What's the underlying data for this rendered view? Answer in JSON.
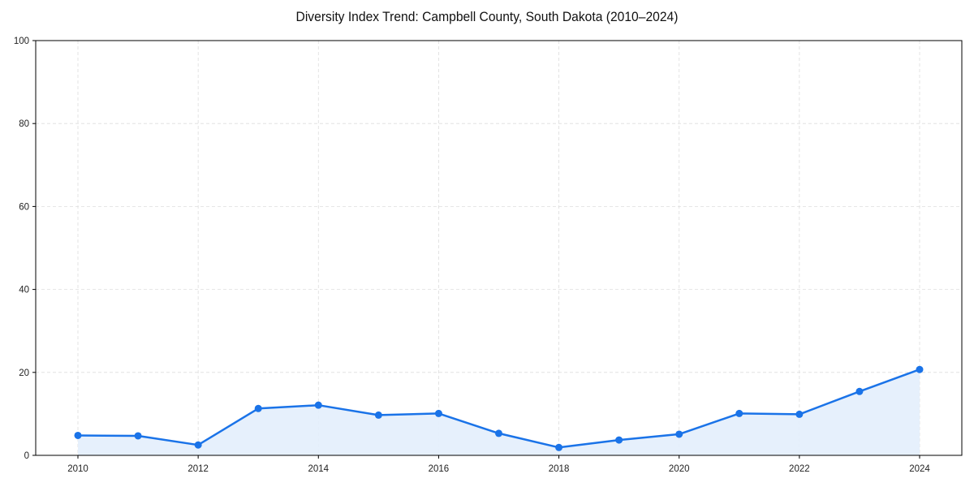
{
  "chart_data": {
    "type": "line",
    "title": "Diversity Index Trend: Campbell County, South Dakota (2010–2024)",
    "xlabel": "",
    "ylabel": "",
    "x": [
      2010,
      2011,
      2012,
      2013,
      2014,
      2015,
      2016,
      2017,
      2018,
      2019,
      2020,
      2021,
      2022,
      2023,
      2024
    ],
    "series": [
      {
        "name": "Diversity Index",
        "values": [
          4.8,
          4.7,
          2.5,
          11.3,
          12.1,
          9.7,
          10.1,
          5.3,
          1.9,
          3.7,
          5.1,
          10.1,
          9.9,
          15.4,
          20.7
        ]
      }
    ],
    "xlim": [
      2009.3,
      2024.7
    ],
    "ylim": [
      0,
      100
    ],
    "xticks": [
      "2010",
      "2012",
      "2014",
      "2016",
      "2018",
      "2020",
      "2022",
      "2024"
    ],
    "yticks": [
      "0",
      "20",
      "40",
      "60",
      "80",
      "100"
    ],
    "grid": true,
    "legend": null,
    "colors": {
      "line": "#1a73e8",
      "fill": "#e3eefc",
      "grid": "#dddddd"
    }
  }
}
